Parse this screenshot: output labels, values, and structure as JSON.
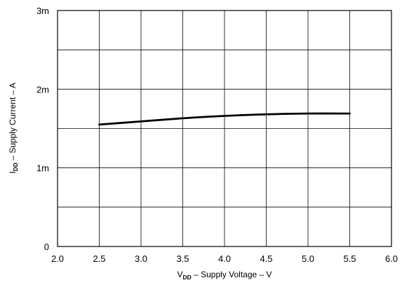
{
  "chart_data": {
    "type": "line",
    "xlim": [
      2.0,
      6.0
    ],
    "ylim": [
      0,
      0.003
    ],
    "x_ticks": [
      2.0,
      2.5,
      3.0,
      3.5,
      4.0,
      4.5,
      5.0,
      5.5,
      6.0
    ],
    "x_tick_labels": [
      "2.0",
      "2.5",
      "3.0",
      "3.5",
      "4.0",
      "4.5",
      "5.0",
      "5.5",
      "6.0"
    ],
    "y_ticks": [
      0,
      0.0005,
      0.001,
      0.0015,
      0.002,
      0.0025,
      0.003
    ],
    "y_tick_labels": [
      "0",
      "",
      "1m",
      "",
      "2m",
      "",
      "3m"
    ],
    "grid": true,
    "xlabel": {
      "prefix": "V",
      "subscript": "DD",
      "suffix": " – Supply Voltage – V"
    },
    "ylabel": {
      "prefix": "I",
      "subscript": "DD",
      "suffix": " – Supply Current – A"
    },
    "series": [
      {
        "color": "#000000",
        "x": [
          2.5,
          3.0,
          3.5,
          4.0,
          4.5,
          5.0,
          5.5
        ],
        "y": [
          0.00155,
          0.00159,
          0.00163,
          0.00166,
          0.00168,
          0.00169,
          0.00169
        ]
      }
    ]
  }
}
